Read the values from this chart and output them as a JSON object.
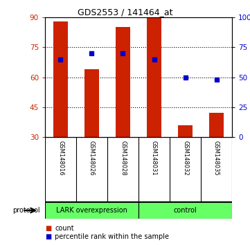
{
  "title": "GDS2553 / 141464_at",
  "samples": [
    "GSM148016",
    "GSM148026",
    "GSM148028",
    "GSM148031",
    "GSM148032",
    "GSM148035"
  ],
  "bar_values": [
    88,
    64,
    85,
    90,
    36,
    42
  ],
  "percentile_values": [
    65,
    70,
    70,
    65,
    50,
    48
  ],
  "bar_color": "#CC2200",
  "dot_color": "#0000CC",
  "ylim_left": [
    30,
    90
  ],
  "ylim_right": [
    0,
    100
  ],
  "yticks_left": [
    30,
    45,
    60,
    75,
    90
  ],
  "yticks_right": [
    0,
    25,
    50,
    75,
    100
  ],
  "ytick_labels_right": [
    "0",
    "25",
    "50",
    "75",
    "100%"
  ],
  "bar_width": 0.45,
  "protocol_label": "protocol",
  "legend_count": "count",
  "legend_percentile": "percentile rank within the sample",
  "bg_color": "#FFFFFF",
  "plot_bg": "#FFFFFF",
  "label_bg": "#C8C8C8",
  "group_bg_lark": "#66FF66",
  "group_bg_control": "#66FF66",
  "tick_color_left": "#CC2200",
  "tick_color_right": "#0000CC",
  "grid_yticks": [
    45,
    60,
    75
  ],
  "bar_bottom": 30,
  "group_labels": [
    "LARK overexpression",
    "control"
  ],
  "group_sizes": [
    3,
    3
  ]
}
